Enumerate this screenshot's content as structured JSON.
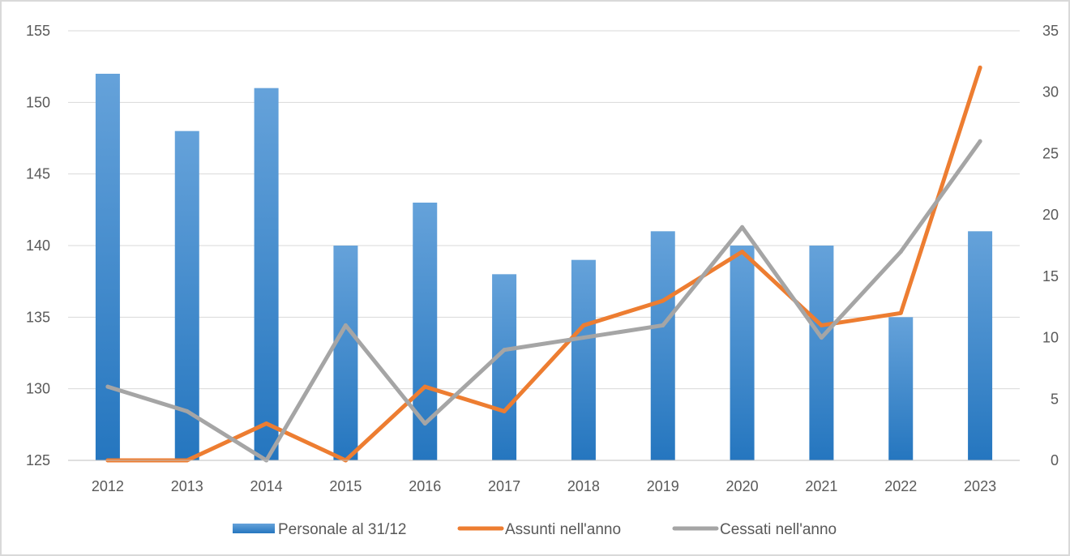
{
  "chart_data": {
    "type": "bar",
    "title": "",
    "xlabel": "",
    "ylabel": "",
    "categories": [
      "2012",
      "2013",
      "2014",
      "2015",
      "2016",
      "2017",
      "2018",
      "2019",
      "2020",
      "2021",
      "2022",
      "2023"
    ],
    "ylim": [
      125,
      155
    ],
    "y_ticks": [
      125,
      130,
      135,
      140,
      145,
      150,
      155
    ],
    "y2lim": [
      0,
      35
    ],
    "y2_ticks": [
      0,
      5,
      10,
      15,
      20,
      25,
      30,
      35
    ],
    "grid": true,
    "legend_position": "bottom",
    "series": [
      {
        "name": "Personale al 31/12",
        "type": "bar",
        "axis": "left",
        "color": "#3b87cc",
        "values": [
          152,
          148,
          151,
          140,
          143,
          138,
          139,
          141,
          140,
          140,
          135,
          141
        ]
      },
      {
        "name": "Assunti nell'anno",
        "type": "line",
        "axis": "right",
        "color": "#ed7d31",
        "values": [
          0,
          0,
          3,
          0,
          6,
          4,
          11,
          13,
          17,
          11,
          12,
          32
        ]
      },
      {
        "name": "Cessati nell'anno",
        "type": "line",
        "axis": "right",
        "color": "#a5a5a5",
        "values": [
          6,
          4,
          0,
          11,
          3,
          9,
          10,
          11,
          19,
          10,
          17,
          26
        ]
      }
    ]
  }
}
